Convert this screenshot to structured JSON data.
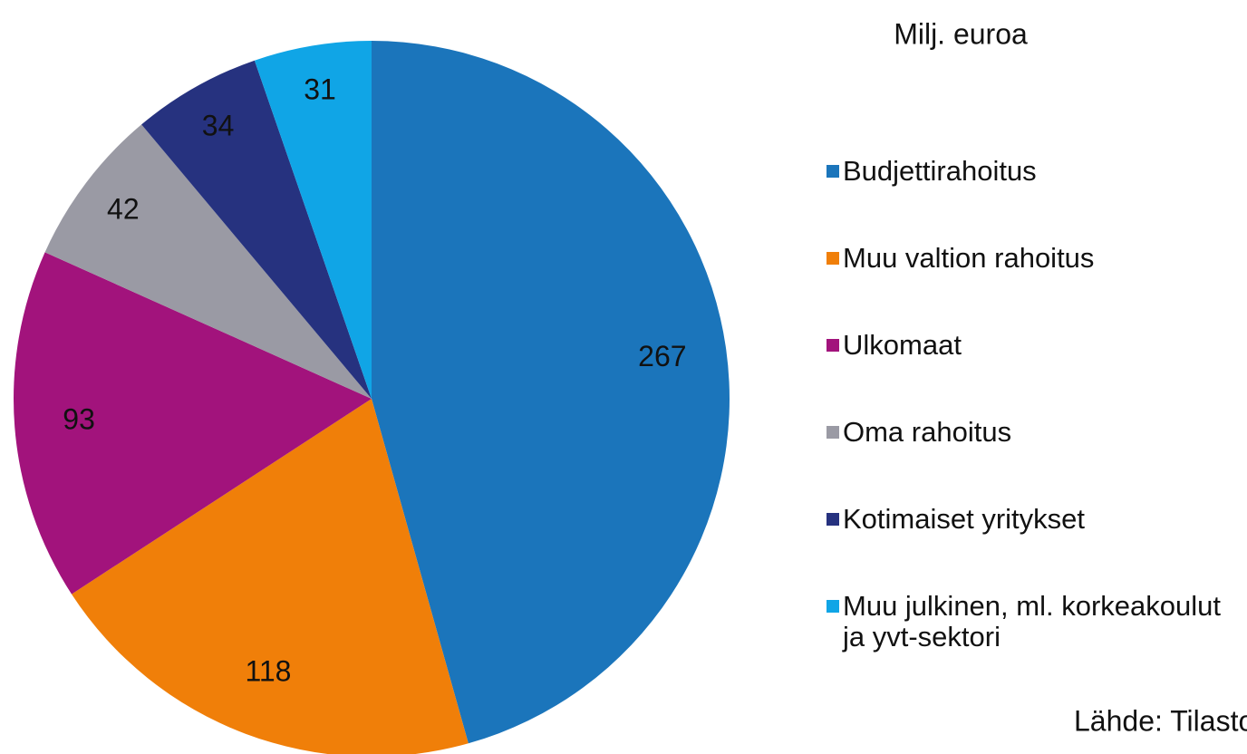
{
  "chart_data": {
    "type": "pie",
    "title": "Milj. euroa",
    "categories": [
      "Budjettirahoitus",
      "Muu valtion rahoitus",
      "Ulkomaat",
      "Oma rahoitus",
      "Kotimaiset yritykset",
      "Muu julkinen, ml. korkeakoulut ja yvt-sektori"
    ],
    "values": [
      267,
      118,
      93,
      42,
      34,
      31
    ],
    "colors": [
      "#1b75bb",
      "#f07f09",
      "#a2137c",
      "#9a9aa4",
      "#26327f",
      "#10a5e6"
    ],
    "source": "Lähde: Tilasto"
  }
}
